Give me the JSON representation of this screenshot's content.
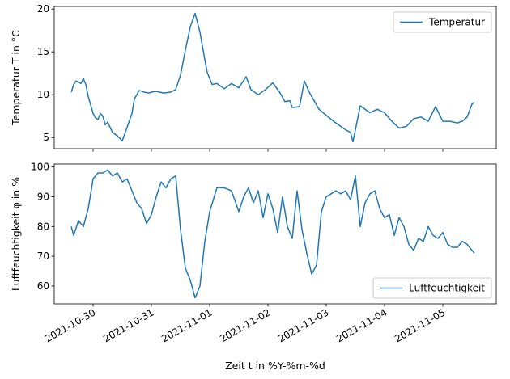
{
  "chart_data": [
    {
      "type": "line",
      "ylabel": "Temperatur T in °C",
      "xlabel": "",
      "xlim": [
        "2021-10-29 08:00",
        "2021-11-05 22:00"
      ],
      "ylim": [
        3.7,
        20.3
      ],
      "yticks": [
        5,
        10,
        15,
        20
      ],
      "xticks": [
        "2021-10-30",
        "2021-10-31",
        "2021-11-01",
        "2021-11-02",
        "2021-11-03",
        "2021-11-04",
        "2021-11-05"
      ],
      "legend": "top-right",
      "grid": false,
      "series": [
        {
          "name": "Temperatur",
          "color": "#1f77b4",
          "x": [
            "2021-10-29 15:00",
            "2021-10-29 16:00",
            "2021-10-29 17:00",
            "2021-10-29 19:00",
            "2021-10-29 20:00",
            "2021-10-29 21:00",
            "2021-10-29 22:00",
            "2021-10-30 00:00",
            "2021-10-30 01:00",
            "2021-10-30 02:00",
            "2021-10-30 03:00",
            "2021-10-30 04:00",
            "2021-10-30 05:00",
            "2021-10-30 06:00",
            "2021-10-30 08:00",
            "2021-10-30 10:00",
            "2021-10-30 12:00",
            "2021-10-30 14:00",
            "2021-10-30 16:00",
            "2021-10-30 17:00",
            "2021-10-30 19:00",
            "2021-10-30 21:00",
            "2021-10-30 23:00",
            "2021-10-31 00:00",
            "2021-10-31 02:00",
            "2021-10-31 05:00",
            "2021-10-31 08:00",
            "2021-10-31 10:00",
            "2021-10-31 12:00",
            "2021-10-31 14:00",
            "2021-10-31 16:00",
            "2021-10-31 18:00",
            "2021-10-31 20:00",
            "2021-10-31 22:00",
            "2021-10-31 23:00",
            "2021-11-01 01:00",
            "2021-11-01 03:00",
            "2021-11-01 06:00",
            "2021-11-01 09:00",
            "2021-11-01 12:00",
            "2021-11-01 15:00",
            "2021-11-01 17:00",
            "2021-11-01 19:00",
            "2021-11-01 20:00",
            "2021-11-01 23:00",
            "2021-11-02 02:00",
            "2021-11-02 05:00",
            "2021-11-02 07:00",
            "2021-11-02 09:00",
            "2021-11-02 10:00",
            "2021-11-02 13:00",
            "2021-11-02 15:00",
            "2021-11-02 17:00",
            "2021-11-02 21:00",
            "2021-11-03 00:00",
            "2021-11-03 03:00",
            "2021-11-03 06:00",
            "2021-11-03 08:00",
            "2021-11-03 10:00",
            "2021-11-03 11:00",
            "2021-11-03 14:00",
            "2021-11-03 18:00",
            "2021-11-03 21:00",
            "2021-11-04 00:00",
            "2021-11-04 03:00",
            "2021-11-04 06:00",
            "2021-11-04 09:00",
            "2021-11-04 12:00",
            "2021-11-04 15:00",
            "2021-11-04 18:00",
            "2021-11-04 21:00",
            "2021-11-05 00:00",
            "2021-11-05 03:00",
            "2021-11-05 06:00",
            "2021-11-05 08:00",
            "2021-11-05 10:00",
            "2021-11-05 12:00",
            "2021-11-05 13:00"
          ],
          "y": [
            10.3,
            11.2,
            11.6,
            11.3,
            11.9,
            11.2,
            9.8,
            7.8,
            7.3,
            7.1,
            7.8,
            7.5,
            6.5,
            6.8,
            5.6,
            5.2,
            4.6,
            6.2,
            7.8,
            9.5,
            10.5,
            10.3,
            10.2,
            10.3,
            10.4,
            10.2,
            10.3,
            10.6,
            12.3,
            15.2,
            17.9,
            19.5,
            17.3,
            14.1,
            12.6,
            11.2,
            11.3,
            10.7,
            11.3,
            10.8,
            12.1,
            10.6,
            10.2,
            10.0,
            10.6,
            11.4,
            10.2,
            9.2,
            9.3,
            8.5,
            8.6,
            11.6,
            10.3,
            8.3,
            7.6,
            6.9,
            6.3,
            5.9,
            5.6,
            4.5,
            8.7,
            7.9,
            8.3,
            7.9,
            6.9,
            6.1,
            6.3,
            7.2,
            7.4,
            6.9,
            8.6,
            6.9,
            6.9,
            6.7,
            6.9,
            7.4,
            8.9,
            9.1
          ]
        }
      ]
    },
    {
      "type": "line",
      "ylabel": "Luftfeuchtigkeit φ in %",
      "xlabel": "Zeit t in %Y-%m-%d",
      "xlim": [
        "2021-10-29 08:00",
        "2021-11-05 22:00"
      ],
      "ylim": [
        54,
        101
      ],
      "yticks": [
        60,
        70,
        80,
        90,
        100
      ],
      "xticks": [
        "2021-10-30",
        "2021-10-31",
        "2021-11-01",
        "2021-11-02",
        "2021-11-03",
        "2021-11-04",
        "2021-11-05"
      ],
      "legend": "bottom-right",
      "grid": false,
      "series": [
        {
          "name": "Luftfeuchtigkeit",
          "color": "#1f77b4",
          "x": [
            "2021-10-29 15:00",
            "2021-10-29 16:00",
            "2021-10-29 18:00",
            "2021-10-29 20:00",
            "2021-10-29 22:00",
            "2021-10-30 00:00",
            "2021-10-30 02:00",
            "2021-10-30 04:00",
            "2021-10-30 06:00",
            "2021-10-30 08:00",
            "2021-10-30 10:00",
            "2021-10-30 12:00",
            "2021-10-30 14:00",
            "2021-10-30 16:00",
            "2021-10-30 18:00",
            "2021-10-30 20:00",
            "2021-10-30 22:00",
            "2021-10-31 00:00",
            "2021-10-31 02:00",
            "2021-10-31 04:00",
            "2021-10-31 06:00",
            "2021-10-31 08:00",
            "2021-10-31 10:00",
            "2021-10-31 12:00",
            "2021-10-31 14:00",
            "2021-10-31 16:00",
            "2021-10-31 18:00",
            "2021-10-31 20:00",
            "2021-10-31 22:00",
            "2021-11-01 00:00",
            "2021-11-01 03:00",
            "2021-11-01 06:00",
            "2021-11-01 09:00",
            "2021-11-01 12:00",
            "2021-11-01 14:00",
            "2021-11-01 16:00",
            "2021-11-01 18:00",
            "2021-11-01 20:00",
            "2021-11-01 22:00",
            "2021-11-02 00:00",
            "2021-11-02 02:00",
            "2021-11-02 04:00",
            "2021-11-02 06:00",
            "2021-11-02 08:00",
            "2021-11-02 10:00",
            "2021-11-02 12:00",
            "2021-11-02 14:00",
            "2021-11-02 16:00",
            "2021-11-02 18:00",
            "2021-11-02 20:00",
            "2021-11-02 22:00",
            "2021-11-03 00:00",
            "2021-11-03 02:00",
            "2021-11-03 04:00",
            "2021-11-03 06:00",
            "2021-11-03 08:00",
            "2021-11-03 10:00",
            "2021-11-03 12:00",
            "2021-11-03 14:00",
            "2021-11-03 16:00",
            "2021-11-03 18:00",
            "2021-11-03 20:00",
            "2021-11-03 22:00",
            "2021-11-04 00:00",
            "2021-11-04 02:00",
            "2021-11-04 04:00",
            "2021-11-04 06:00",
            "2021-11-04 08:00",
            "2021-11-04 10:00",
            "2021-11-04 12:00",
            "2021-11-04 14:00",
            "2021-11-04 16:00",
            "2021-11-04 18:00",
            "2021-11-04 20:00",
            "2021-11-04 22:00",
            "2021-11-05 00:00",
            "2021-11-05 02:00",
            "2021-11-05 04:00",
            "2021-11-05 06:00",
            "2021-11-05 08:00",
            "2021-11-05 10:00",
            "2021-11-05 12:00",
            "2021-11-05 13:00"
          ],
          "y": [
            80,
            77,
            82,
            80,
            86,
            96,
            98,
            98,
            99,
            97,
            98,
            95,
            96,
            92,
            88,
            86,
            81,
            84,
            90,
            95,
            93,
            96,
            97,
            79,
            66,
            62,
            56,
            60,
            75,
            85,
            93,
            93,
            92,
            85,
            90,
            93,
            88,
            92,
            83,
            91,
            86,
            78,
            90,
            80,
            76,
            92,
            79,
            71,
            64,
            67,
            85,
            90,
            91,
            92,
            91,
            92,
            89,
            97,
            80,
            88,
            91,
            92,
            86,
            83,
            84,
            77,
            83,
            80,
            74,
            72,
            76,
            75,
            80,
            77,
            76,
            78,
            74,
            73,
            73,
            75,
            74,
            72,
            71
          ]
        }
      ]
    }
  ]
}
